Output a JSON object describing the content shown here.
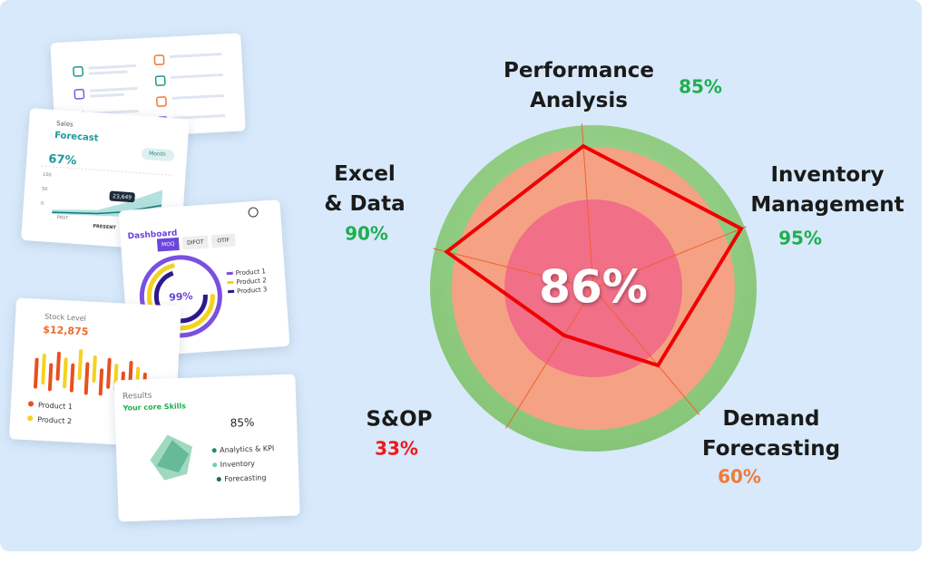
{
  "chart_data": {
    "type": "radar",
    "categories": [
      "Performance Analysis",
      "Inventory Management",
      "Demand Forecasting",
      "S&OP",
      "Excel & Data"
    ],
    "values": [
      85,
      95,
      60,
      33,
      90
    ],
    "value_labels": [
      "85%",
      "95%",
      "60%",
      "33%",
      "90%"
    ],
    "label_colors": [
      "#1fae4f",
      "#1fae4f",
      "#ef7a3a",
      "#f01818",
      "#1fae4f"
    ],
    "line_color": "#f00000",
    "center_label": "86%"
  },
  "cards": {
    "sales": {
      "subtitle": "Sales",
      "title": "Forecast",
      "filter": "Month",
      "percent": "67%",
      "axis": [
        "100",
        "50",
        "0"
      ],
      "tooltip": "23,649",
      "x_labels": [
        "PAST",
        "PRESENT"
      ]
    },
    "dashboard": {
      "title": "Dashboard",
      "tabs": [
        "MOQ",
        "DIFOT",
        "OTIF"
      ],
      "percent": "99%",
      "legend": [
        "Product 1",
        "Product 2",
        "Product 3"
      ]
    },
    "stock": {
      "title": "Stock Level",
      "amount": "$12,875",
      "legend": [
        "Product 1",
        "Product 2"
      ]
    },
    "results": {
      "title": "Results",
      "subtitle": "Your core Skills",
      "percent": "85%",
      "legend": [
        "Analytics & KPI",
        "Inventory",
        "Forecasting"
      ]
    }
  }
}
